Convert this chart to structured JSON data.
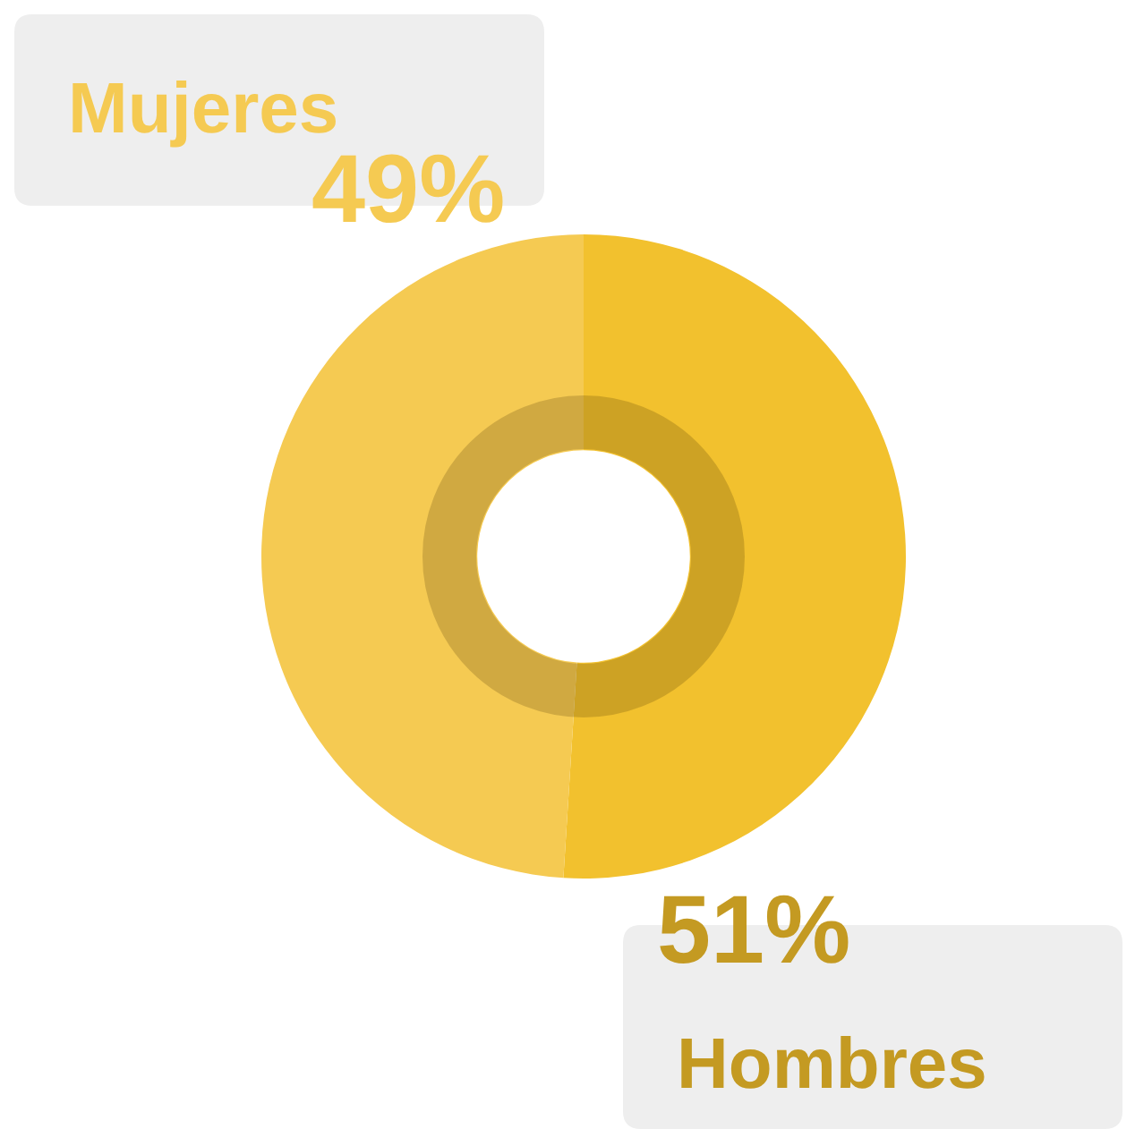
{
  "chart_data": {
    "type": "donut",
    "categories": [
      "Hombres",
      "Mujeres"
    ],
    "values": [
      51,
      49
    ],
    "value_labels": [
      "51%",
      "49%"
    ],
    "colors": [
      "#f2c12e",
      "#f5ca52"
    ],
    "legend": false
  }
}
